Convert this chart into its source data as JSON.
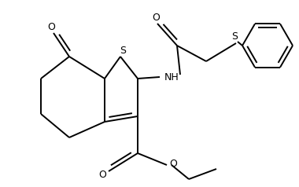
{
  "bg_color": "#ffffff",
  "line_color": "#000000",
  "lw": 1.4,
  "figsize": [
    3.8,
    2.38
  ],
  "dpi": 100,
  "xlim": [
    0,
    380
  ],
  "ylim": [
    0,
    238
  ]
}
